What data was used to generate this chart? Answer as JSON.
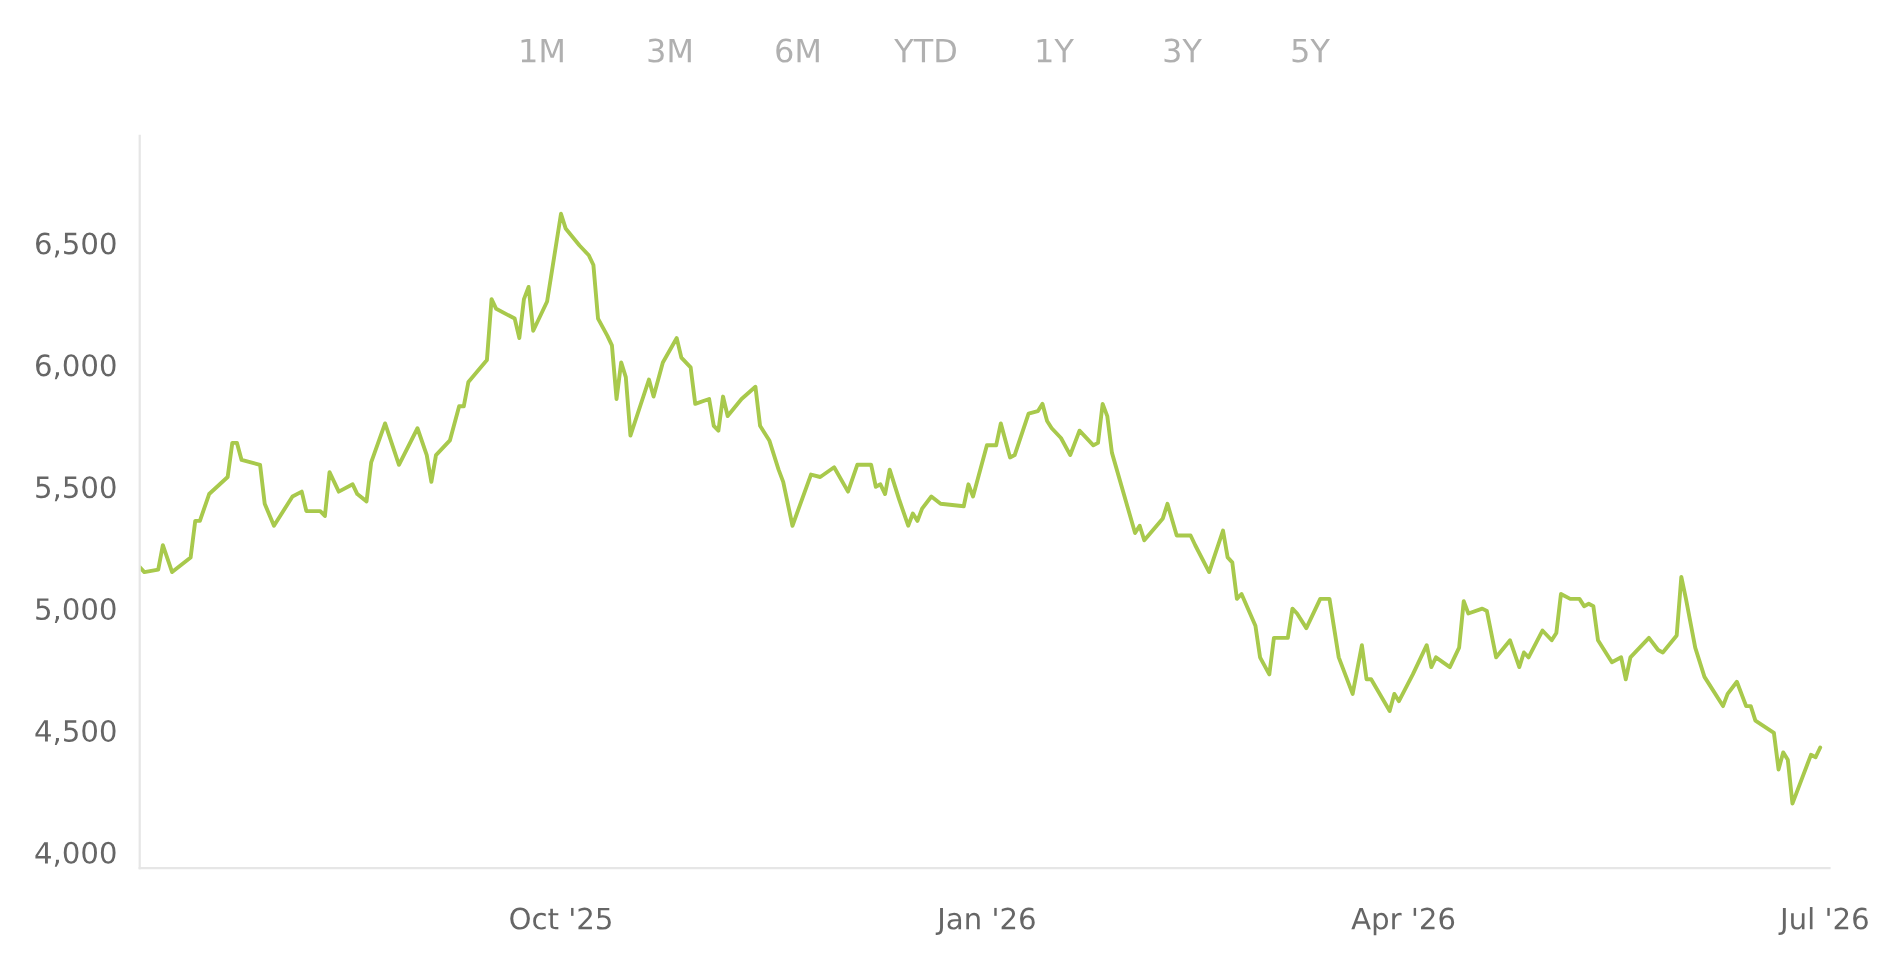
{
  "chart_data": {
    "type": "line",
    "annotations": [
      "1M",
      "3M",
      "6M",
      "YTD",
      "1Y",
      "3Y",
      "5Y"
    ],
    "x": [
      "2025-07-02",
      "2025-07-03",
      "2025-07-06",
      "2025-07-07",
      "2025-07-09",
      "2025-07-11",
      "2025-07-13",
      "2025-07-14",
      "2025-07-15",
      "2025-07-17",
      "2025-07-21",
      "2025-07-22",
      "2025-07-23",
      "2025-07-24",
      "2025-07-28",
      "2025-07-29",
      "2025-07-31",
      "2025-08-04",
      "2025-08-06",
      "2025-08-07",
      "2025-08-10",
      "2025-08-11",
      "2025-08-12",
      "2025-08-14",
      "2025-08-17",
      "2025-08-18",
      "2025-08-20",
      "2025-08-21",
      "2025-08-24",
      "2025-08-27",
      "2025-08-31",
      "2025-09-02",
      "2025-09-03",
      "2025-09-04",
      "2025-09-07",
      "2025-09-09",
      "2025-09-10",
      "2025-09-11",
      "2025-09-15",
      "2025-09-16",
      "2025-09-17",
      "2025-09-21",
      "2025-09-22",
      "2025-09-23",
      "2025-09-24",
      "2025-09-25",
      "2025-09-28",
      "2025-10-01",
      "2025-10-02",
      "2025-10-05",
      "2025-10-07",
      "2025-10-08",
      "2025-10-09",
      "2025-10-11",
      "2025-10-12",
      "2025-10-13",
      "2025-10-14",
      "2025-10-15",
      "2025-10-16",
      "2025-10-20",
      "2025-10-21",
      "2025-10-23",
      "2025-10-26",
      "2025-10-27",
      "2025-10-29",
      "2025-10-30",
      "2025-11-02",
      "2025-11-03",
      "2025-11-04",
      "2025-11-05",
      "2025-11-06",
      "2025-11-09",
      "2025-11-12",
      "2025-11-13",
      "2025-11-15",
      "2025-11-17",
      "2025-11-18",
      "2025-11-20",
      "2025-11-24",
      "2025-11-26",
      "2025-11-29",
      "2025-12-02",
      "2025-12-04",
      "2025-12-07",
      "2025-12-08",
      "2025-12-09",
      "2025-12-10",
      "2025-12-11",
      "2025-12-13",
      "2025-12-15",
      "2025-12-16",
      "2025-12-17",
      "2025-12-18",
      "2025-12-20",
      "2025-12-22",
      "2025-12-27",
      "2025-12-28",
      "2025-12-29",
      "2026-01-01",
      "2026-01-03",
      "2026-01-04",
      "2026-01-06",
      "2026-01-07",
      "2026-01-10",
      "2026-01-12",
      "2026-01-13",
      "2026-01-14",
      "2026-01-15",
      "2026-01-17",
      "2026-01-19",
      "2026-01-20",
      "2026-01-21",
      "2026-01-24",
      "2026-01-25",
      "2026-01-26",
      "2026-01-27",
      "2026-01-28",
      "2026-02-02",
      "2026-02-03",
      "2026-02-04",
      "2026-02-08",
      "2026-02-09",
      "2026-02-11",
      "2026-02-14",
      "2026-02-15",
      "2026-02-18",
      "2026-02-21",
      "2026-02-22",
      "2026-02-23",
      "2026-02-24",
      "2026-02-25",
      "2026-02-28",
      "2026-03-01",
      "2026-03-03",
      "2026-03-04",
      "2026-03-07",
      "2026-03-08",
      "2026-03-09",
      "2026-03-11",
      "2026-03-14",
      "2026-03-16",
      "2026-03-18",
      "2026-03-21",
      "2026-03-23",
      "2026-03-24",
      "2026-03-25",
      "2026-03-29",
      "2026-03-30",
      "2026-03-31",
      "2026-04-03",
      "2026-04-06",
      "2026-04-07",
      "2026-04-08",
      "2026-04-11",
      "2026-04-13",
      "2026-04-14",
      "2026-04-15",
      "2026-04-18",
      "2026-04-19",
      "2026-04-21",
      "2026-04-24",
      "2026-04-26",
      "2026-04-27",
      "2026-04-28",
      "2026-05-01",
      "2026-05-03",
      "2026-05-04",
      "2026-05-05",
      "2026-05-07",
      "2026-05-09",
      "2026-05-10",
      "2026-05-11",
      "2026-05-12",
      "2026-05-13",
      "2026-05-16",
      "2026-05-18",
      "2026-05-19",
      "2026-05-20",
      "2026-05-24",
      "2026-05-26",
      "2026-05-27",
      "2026-05-30",
      "2026-05-31",
      "2026-06-01",
      "2026-06-03",
      "2026-06-05",
      "2026-06-06",
      "2026-06-09",
      "2026-06-10",
      "2026-06-12",
      "2026-06-14",
      "2026-06-15",
      "2026-06-16",
      "2026-06-20",
      "2026-06-21",
      "2026-06-22",
      "2026-06-23",
      "2026-06-24",
      "2026-06-28",
      "2026-06-29",
      "2026-06-30"
    ],
    "series": [
      {
        "color": "#a8c94c",
        "values": [
          5170,
          5150,
          5160,
          5260,
          5150,
          5180,
          5210,
          5360,
          5360,
          5470,
          5540,
          5680,
          5680,
          5610,
          5590,
          5430,
          5340,
          5460,
          5480,
          5400,
          5400,
          5380,
          5560,
          5480,
          5510,
          5470,
          5440,
          5600,
          5760,
          5590,
          5740,
          5630,
          5520,
          5630,
          5690,
          5830,
          5830,
          5930,
          6020,
          6270,
          6230,
          6190,
          6110,
          6270,
          6320,
          6140,
          6260,
          6620,
          6560,
          6490,
          6450,
          6410,
          6190,
          6120,
          6080,
          5860,
          6010,
          5950,
          5710,
          5940,
          5870,
          6010,
          6110,
          6030,
          5990,
          5840,
          5860,
          5750,
          5730,
          5870,
          5790,
          5860,
          5910,
          5750,
          5690,
          5570,
          5520,
          5340,
          5550,
          5540,
          5580,
          5480,
          5590,
          5590,
          5500,
          5510,
          5470,
          5570,
          5450,
          5340,
          5390,
          5360,
          5410,
          5460,
          5430,
          5420,
          5510,
          5460,
          5670,
          5670,
          5760,
          5620,
          5630,
          5800,
          5810,
          5840,
          5770,
          5740,
          5700,
          5630,
          5680,
          5730,
          5670,
          5680,
          5840,
          5790,
          5640,
          5310,
          5340,
          5280,
          5370,
          5430,
          5300,
          5300,
          5260,
          5150,
          5320,
          5210,
          5190,
          5040,
          5060,
          4930,
          4800,
          4730,
          4880,
          4880,
          5000,
          4980,
          4920,
          5040,
          5040,
          4800,
          4650,
          4850,
          4710,
          4710,
          4580,
          4650,
          4620,
          4730,
          4850,
          4760,
          4800,
          4760,
          4840,
          5030,
          4980,
          5000,
          4990,
          4800,
          4870,
          4760,
          4820,
          4800,
          4910,
          4870,
          4900,
          5060,
          5040,
          5040,
          5010,
          5020,
          5010,
          4870,
          4780,
          4800,
          4710,
          4800,
          4880,
          4830,
          4820,
          4890,
          5130,
          5040,
          4840,
          4720,
          4690,
          4600,
          4650,
          4700,
          4600,
          4600,
          4540,
          4490,
          4340,
          4410,
          4380,
          4200,
          4400,
          4390,
          4430
        ]
      }
    ],
    "xlim": [
      "2025-07-02",
      "2026-07-02"
    ],
    "xticks": [
      {
        "value": "2025-10-01",
        "label": "Oct '25"
      },
      {
        "value": "2026-01-01",
        "label": "Jan '26"
      },
      {
        "value": "2026-04-01",
        "label": "Apr '26"
      },
      {
        "value": "2026-07-01",
        "label": "Jul '26"
      }
    ],
    "ylim": [
      3935,
      6940
    ],
    "yticks": [
      {
        "value": 4000,
        "label": "4,000"
      },
      {
        "value": 4500,
        "label": "4,500"
      },
      {
        "value": 5000,
        "label": "5,000"
      },
      {
        "value": 5500,
        "label": "5,500"
      },
      {
        "value": 6000,
        "label": "6,000"
      },
      {
        "value": 6500,
        "label": "6,500"
      }
    ],
    "grid": false
  }
}
